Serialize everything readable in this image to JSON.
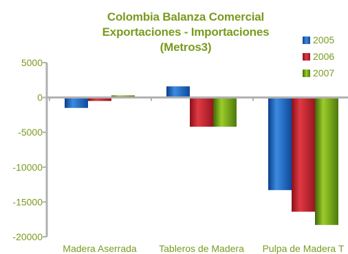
{
  "chart_data": {
    "type": "bar",
    "title_lines": [
      "Colombia Balanza Comercial",
      "Exportaciones - Importaciones",
      "(Metros3)"
    ],
    "categories": [
      "Madera Aserrada",
      "Tableros de Madera",
      "Pulpa de Madera T"
    ],
    "series": [
      {
        "name": "2005",
        "values": [
          -1500,
          1600,
          -13300
        ],
        "color": "#1f5fae"
      },
      {
        "name": "2006",
        "values": [
          -500,
          -4200,
          -16400
        ],
        "color": "#c0202a"
      },
      {
        "name": "2007",
        "values": [
          300,
          -4200,
          -18300
        ],
        "color": "#6f9a1a"
      }
    ],
    "ylim": [
      -20000,
      5000
    ],
    "yticks": [
      "5000",
      "0",
      "-5000",
      "-10000",
      "-15000",
      "-20000"
    ],
    "ytick_values": [
      5000,
      0,
      -5000,
      -10000,
      -15000,
      -20000
    ],
    "grid": false,
    "legend_position": "top-right",
    "text_color": "#7a9a1e"
  }
}
